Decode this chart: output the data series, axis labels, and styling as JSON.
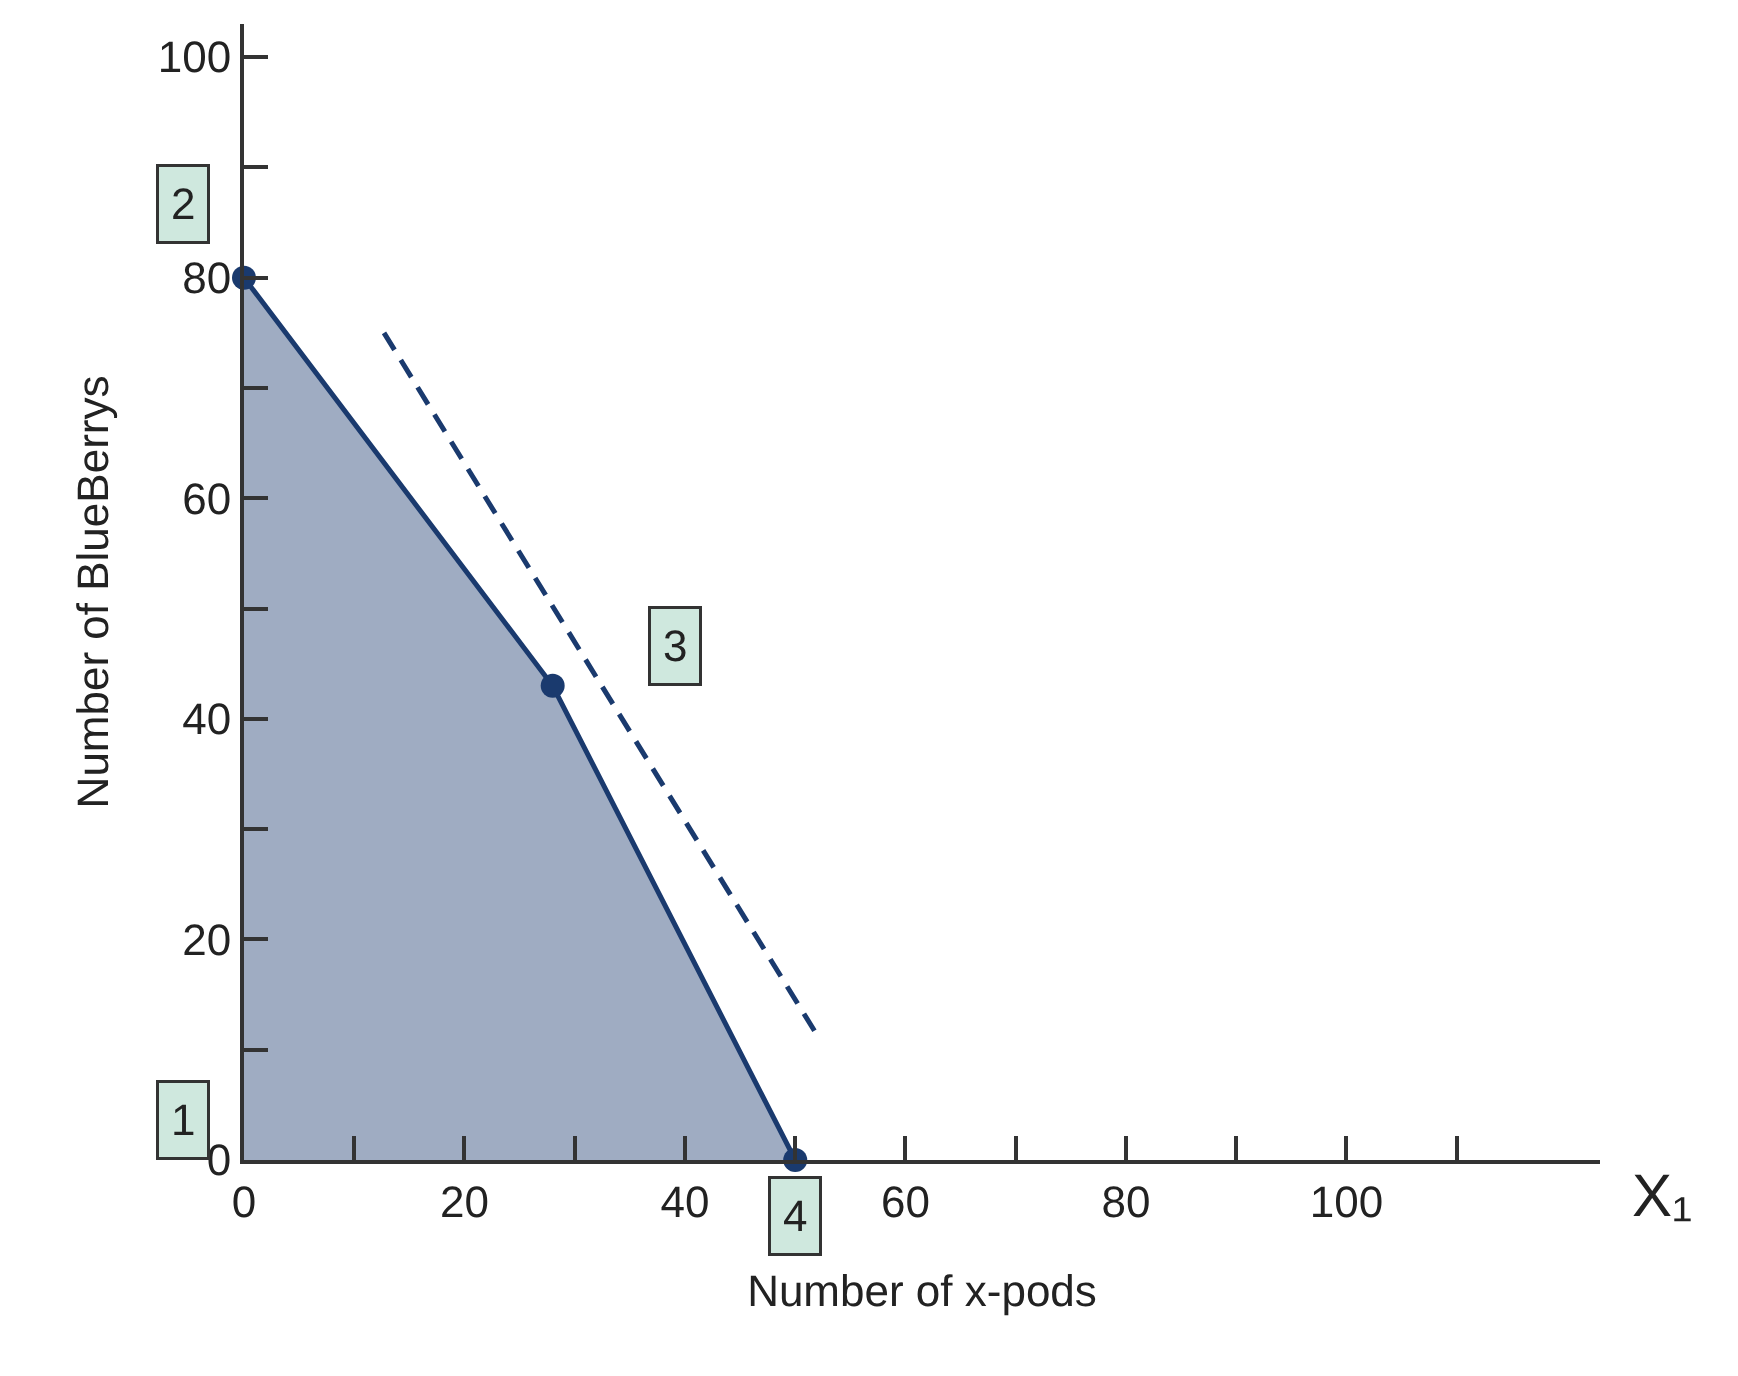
{
  "chart_data": {
    "type": "area",
    "xlabel": "Number of x-pods",
    "ylabel": "Number of BlueBerrys",
    "x": [
      0,
      28,
      50
    ],
    "series": [
      {
        "color": "#1a3a6e",
        "values": [
          80,
          43,
          0
        ],
        "marker": "circle",
        "line_style": "solid"
      },
      {
        "type": "line",
        "color": "#1a3a6e",
        "x": [
          12.7,
          52
        ],
        "values": [
          75,
          11.3
        ],
        "marker": "none",
        "line_style": "dashed"
      }
    ],
    "xlim": [
      0,
      123
    ],
    "ylim": [
      0,
      103
    ],
    "xticks": [
      0,
      {
        "value": 10,
        "label": null
      },
      20,
      {
        "value": 30,
        "label": null
      },
      40,
      {
        "value": 50,
        "label": null
      },
      60,
      {
        "value": 70,
        "label": null
      },
      80,
      {
        "value": 90,
        "label": null
      },
      100,
      {
        "value": 110,
        "label": null
      }
    ],
    "yticks": [
      0,
      {
        "value": 10,
        "label": null
      },
      20,
      {
        "value": 30,
        "label": null
      },
      40,
      {
        "value": 50,
        "label": null
      },
      60,
      {
        "value": 70,
        "label": null
      },
      80,
      {
        "value": 90,
        "label": null
      },
      100
    ],
    "annotations": [
      {
        "text": "1",
        "x": 0,
        "y": 0
      },
      {
        "text": "2",
        "x": 0,
        "y": 80
      },
      {
        "text": "3",
        "x": 28,
        "y": 43
      },
      {
        "text": "4",
        "x": 50,
        "y": 0
      },
      "X₁"
    ]
  }
}
